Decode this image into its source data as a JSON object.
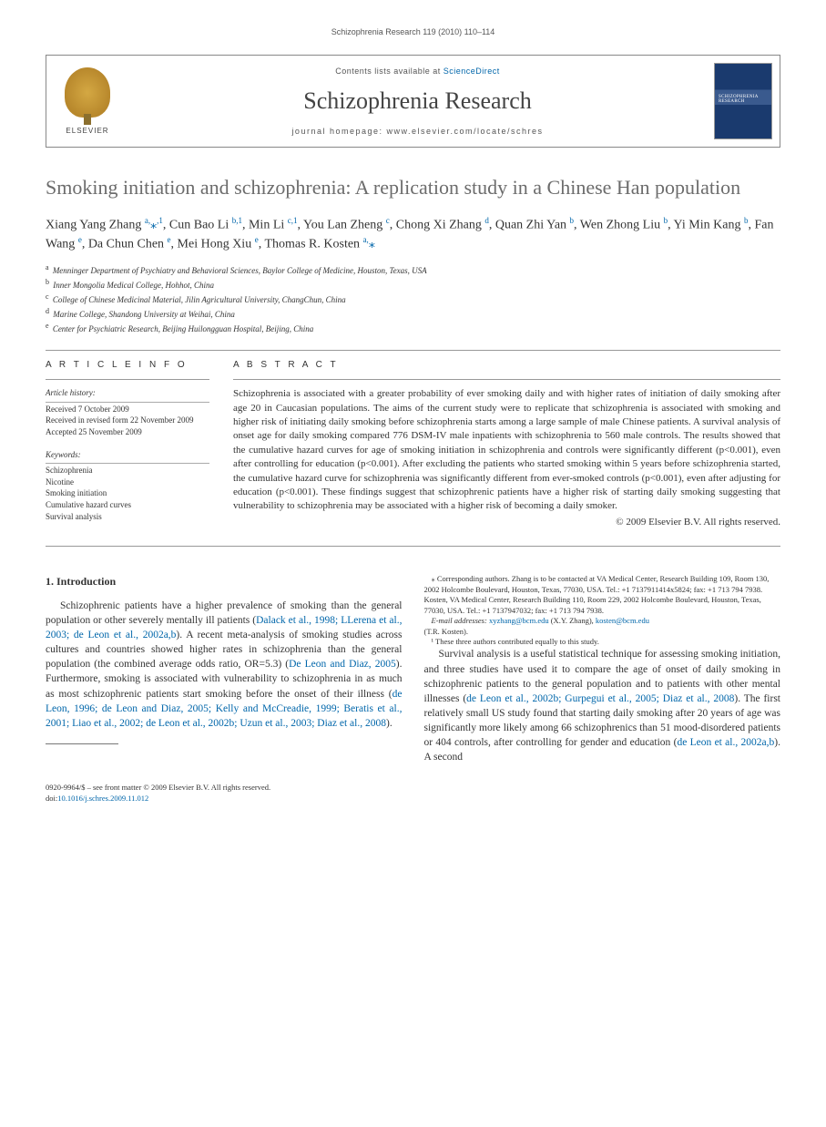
{
  "running_header": "Schizophrenia Research 119 (2010) 110–114",
  "masthead": {
    "contents_prefix": "Contents lists available at ",
    "contents_link": "ScienceDirect",
    "journal": "Schizophrenia Research",
    "homepage_prefix": "journal homepage: ",
    "homepage_url": "www.elsevier.com/locate/schres",
    "publisher_label": "ELSEVIER",
    "cover_label": "SCHIZOPHRENIA RESEARCH"
  },
  "title": "Smoking initiation and schizophrenia: A replication study in a Chinese Han population",
  "authors_html": "Xiang Yang Zhang <sup>a,</sup><span class='star'>⁎</span><sup>,1</sup>, Cun Bao Li <sup>b,1</sup>, Min Li <sup>c,1</sup>, You Lan Zheng <sup>c</sup>, Chong Xi Zhang <sup>d</sup>, Quan Zhi Yan <sup>b</sup>, Wen Zhong Liu <sup>b</sup>, Yi Min Kang <sup>b</sup>, Fan Wang <sup>e</sup>, Da Chun Chen <sup>e</sup>, Mei Hong Xiu <sup>e</sup>, Thomas R. Kosten <sup>a,</sup><span class='star'>⁎</span>",
  "affiliations": [
    {
      "key": "a",
      "text": "Menninger Department of Psychiatry and Behavioral Sciences, Baylor College of Medicine, Houston, Texas, USA"
    },
    {
      "key": "b",
      "text": "Inner Mongolia Medical College, Hohhot, China"
    },
    {
      "key": "c",
      "text": "College of Chinese Medicinal Material, Jilin Agricultural University, ChangChun, China"
    },
    {
      "key": "d",
      "text": "Marine College, Shandong University at Weihai, China"
    },
    {
      "key": "e",
      "text": "Center for Psychiatric Research, Beijing Huilongguan Hospital, Beijing, China"
    }
  ],
  "info": {
    "label": "A R T I C L E   I N F O",
    "history_label": "Article history:",
    "history": [
      "Received 7 October 2009",
      "Received in revised form 22 November 2009",
      "Accepted 25 November 2009"
    ],
    "keywords_label": "Keywords:",
    "keywords": [
      "Schizophrenia",
      "Nicotine",
      "Smoking initiation",
      "Cumulative hazard curves",
      "Survival analysis"
    ]
  },
  "abstract": {
    "label": "A B S T R A C T",
    "text": "Schizophrenia is associated with a greater probability of ever smoking daily and with higher rates of initiation of daily smoking after age 20 in Caucasian populations. The aims of the current study were to replicate that schizophrenia is associated with smoking and higher risk of initiating daily smoking before schizophrenia starts among a large sample of male Chinese patients. A survival analysis of onset age for daily smoking compared 776 DSM-IV male inpatients with schizophrenia to 560 male controls. The results showed that the cumulative hazard curves for age of smoking initiation in schizophrenia and controls were significantly different (p<0.001), even after controlling for education (p<0.001). After excluding the patients who started smoking within 5 years before schizophrenia started, the cumulative hazard curve for schizophrenia was significantly different from ever-smoked controls (p<0.001), even after adjusting for education (p<0.001). These findings suggest that schizophrenic patients have a higher risk of starting daily smoking suggesting that vulnerability to schizophrenia may be associated with a higher risk of becoming a daily smoker.",
    "copyright": "© 2009 Elsevier B.V. All rights reserved."
  },
  "body": {
    "heading": "1. Introduction",
    "p1_pre": "Schizophrenic patients have a higher prevalence of smoking than the general population or other severely mentally ill patients (",
    "p1_cite1": "Dalack et al., 1998; LLerena et al., 2003; de Leon et al., 2002a,b",
    "p1_mid": "). A recent meta-analysis of smoking studies across cultures and countries showed higher rates in schizophrenia than the general population (the combined average odds ratio, OR=5.3) (",
    "p1_cite2": "De Leon and Diaz, 2005",
    "p1_mid2": "). Furthermore, smoking is associated with vulnerability to schizophrenia in as much as most schizophrenic patients start smoking before the onset of their illness (",
    "p1_cite3": "de Leon, 1996; de Leon and Diaz, 2005; Kelly and McCreadie, 1999; Beratis et al., 2001; Liao et al., 2002; de Leon et al., 2002b; Uzun et al., 2003; Diaz et al., 2008",
    "p1_end": ").",
    "p2_pre": "Survival analysis is a useful statistical technique for assessing smoking initiation, and three studies have used it to compare the age of onset of daily smoking in schizophrenic patients to the general population and to patients with other mental illnesses (",
    "p2_cite1": "de Leon et al., 2002b; Gurpegui et al., 2005; Diaz et al., 2008",
    "p2_mid": "). The first relatively small US study found that starting daily smoking after 20 years of age was significantly more likely among 66 schizophrenics than 51 mood-disordered patients or 404 controls, after controlling for gender and education (",
    "p2_cite2": "de Leon et al., 2002a,b",
    "p2_end": "). A second"
  },
  "footnotes": {
    "corr": "⁎ Corresponding authors. Zhang is to be contacted at VA Medical Center, Research Building 109, Room 130, 2002 Holcombe Boulevard, Houston, Texas, 77030, USA. Tel.: +1 7137911414x5824; fax: +1 713 794 7938. Kosten, VA Medical Center, Research Building 110, Room 229, 2002 Holcombe Boulevard, Houston, Texas, 77030, USA. Tel.: +1 7137947032; fax: +1 713 794 7938.",
    "email_label": "E-mail addresses: ",
    "email1": "xyzhang@bcm.edu",
    "email1_who": " (X.Y. Zhang), ",
    "email2": "kosten@bcm.edu",
    "email2_who": " (T.R. Kosten).",
    "contrib": "¹ These three authors contributed equally to this study."
  },
  "footer": {
    "left_line1": "0920-9964/$ – see front matter © 2009 Elsevier B.V. All rights reserved.",
    "doi_prefix": "doi:",
    "doi": "10.1016/j.schres.2009.11.012"
  },
  "colors": {
    "link": "#0066aa",
    "title_gray": "#6c6c6c",
    "text": "#333333",
    "rule": "#999999"
  }
}
